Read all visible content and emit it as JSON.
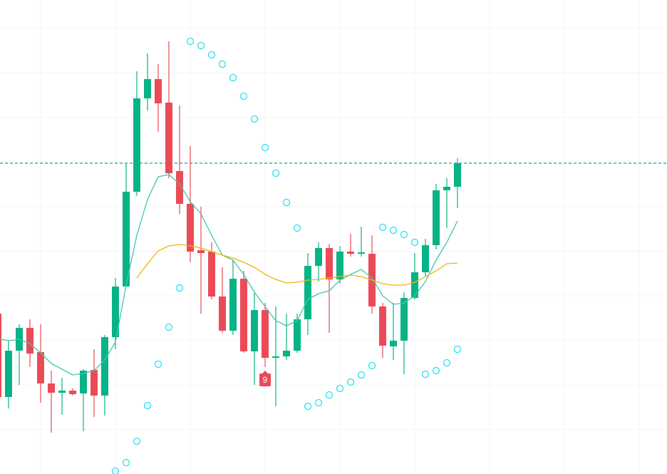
{
  "chart_data": {
    "type": "candlestick",
    "ylim": [
      0,
      665
    ],
    "up_color": "#08b386",
    "down_color": "#eb4a57",
    "grid": true,
    "candles": {
      "open": [
        225,
        108,
        173,
        205,
        171,
        127,
        114,
        117,
        113,
        146,
        110,
        192,
        263,
        396,
        527,
        554,
        521,
        425,
        379,
        314,
        312,
        249,
        201,
        274,
        172,
        230,
        163,
        165,
        173,
        217,
        292,
        317,
        273,
        312,
        309,
        309,
        235,
        179,
        187,
        247,
        283,
        321,
        398,
        403
      ],
      "high": [
        235,
        187,
        210,
        217,
        210,
        145,
        135,
        120,
        147,
        175,
        195,
        275,
        435,
        565,
        590,
        575,
        607,
        517,
        460,
        375,
        325,
        290,
        300,
        285,
        255,
        240,
        235,
        225,
        225,
        310,
        325,
        323,
        320,
        337,
        347,
        335,
        240,
        240,
        255,
        310,
        330,
        407,
        415,
        443
      ],
      "low": [
        100,
        92,
        125,
        150,
        100,
        58,
        83,
        110,
        60,
        80,
        82,
        175,
        263,
        390,
        510,
        480,
        415,
        365,
        297,
        225,
        245,
        198,
        195,
        170,
        125,
        150,
        95,
        160,
        170,
        195,
        270,
        198,
        267,
        305,
        305,
        225,
        163,
        160,
        140,
        245,
        277,
        315,
        345,
        373
      ],
      "close": [
        108,
        173,
        205,
        169,
        127,
        114,
        117,
        112,
        145,
        110,
        192,
        263,
        396,
        527,
        554,
        520,
        422,
        379,
        312,
        310,
        249,
        201,
        274,
        172,
        230,
        163,
        165,
        173,
        217,
        292,
        317,
        273,
        312,
        309,
        311,
        235,
        180,
        187,
        247,
        283,
        321,
        398,
        403,
        436
      ]
    },
    "lines": [
      {
        "color": "#3cc9b0",
        "values": [
          190,
          187,
          189,
          183,
          170,
          155,
          147,
          139,
          141,
          145,
          160,
          185,
          265,
          335,
          385,
          417,
          420,
          407,
          382,
          365,
          335,
          307,
          300,
          280,
          255,
          235,
          215,
          208,
          215,
          245,
          253,
          257,
          272,
          280,
          287,
          275,
          250,
          238,
          240,
          250,
          270,
          300,
          325,
          355
        ]
      },
      {
        "color": "#f4b400",
        "values": [
          null,
          null,
          null,
          null,
          null,
          null,
          null,
          null,
          null,
          null,
          null,
          null,
          null,
          275,
          295,
          313,
          320,
          322,
          320,
          317,
          312,
          307,
          303,
          297,
          290,
          280,
          273,
          268,
          269,
          272,
          273,
          275,
          277,
          279,
          277,
          272,
          267,
          265,
          265,
          269,
          277,
          285,
          295,
          296
        ]
      }
    ],
    "sar": {
      "color": "#22e3f0",
      "values": [
        null,
        null,
        null,
        null,
        null,
        null,
        null,
        null,
        null,
        null,
        null,
        4,
        16,
        46,
        96,
        154,
        206,
        261,
        607,
        601,
        588,
        575,
        556,
        530,
        498,
        458,
        422,
        381,
        345,
        95,
        100,
        111,
        120,
        129,
        139,
        152,
        346,
        342,
        336,
        325,
        140,
        145,
        156,
        175
      ]
    },
    "price_line": {
      "value": 436,
      "color": "#1aa39a"
    },
    "annotations": [
      {
        "text": "9",
        "candle": 25
      }
    ]
  }
}
